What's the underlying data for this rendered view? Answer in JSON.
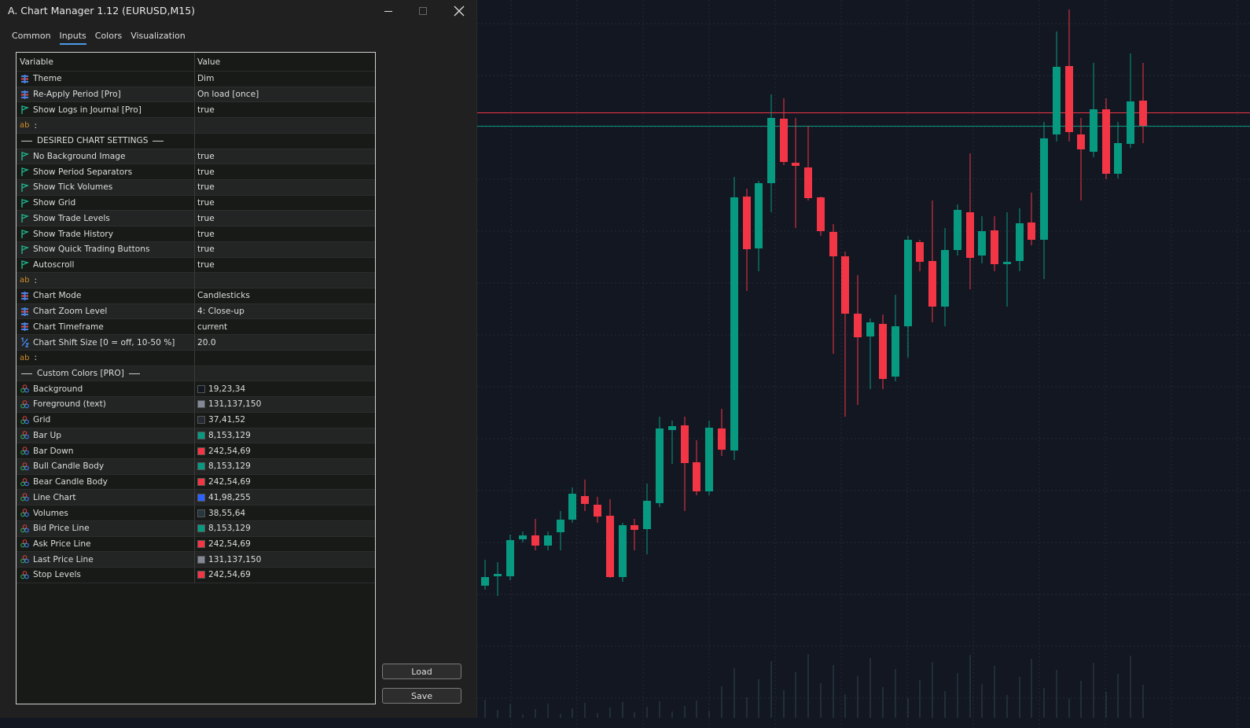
{
  "window": {
    "title": "A. Chart Manager 1.12 (EURUSD,M15)"
  },
  "tabs": [
    "Common",
    "Inputs",
    "Colors",
    "Visualization"
  ],
  "active_tab": 1,
  "table": {
    "header": [
      "Variable",
      "Value"
    ],
    "rows": [
      {
        "variable": "Theme",
        "value": "Dim"
      },
      {
        "variable": "Re-Apply Period [Pro]",
        "value": "On load [once]"
      },
      {
        "variable": "Show Logs in Journal [Pro]",
        "value": "true"
      },
      {
        "icon": "ab",
        "variable": ":"
      },
      {
        "section": "DESIRED CHART SETTINGS"
      },
      {
        "variable": "No Background Image",
        "value": "true"
      },
      {
        "variable": "Show Period Separators",
        "value": "true"
      },
      {
        "variable": "Show Tick Volumes",
        "value": "true"
      },
      {
        "variable": "Show Grid",
        "value": "true"
      },
      {
        "variable": "Show Trade Levels",
        "value": "true"
      },
      {
        "variable": "Show Trade History",
        "value": "true"
      },
      {
        "variable": "Show Quick Trading Buttons",
        "value": "true"
      },
      {
        "variable": "Autoscroll",
        "value": "true"
      },
      {
        "icon": "ab",
        "variable": ":"
      },
      {
        "variable": "Chart Mode",
        "value": "Candlesticks"
      },
      {
        "variable": "Chart Zoom Level",
        "value": "4: Close-up"
      },
      {
        "variable": "Chart Timeframe",
        "value": "current"
      },
      {
        "variable": "Chart Shift Size [0 = off, 10-50 %]",
        "value": "20.0"
      },
      {
        "icon": "ab",
        "variable": ":"
      },
      {
        "section": "Custom Colors [PRO]"
      },
      {
        "variable": "Background",
        "value": "19,23,34"
      },
      {
        "variable": "Foreground (text)",
        "value": "131,137,150"
      },
      {
        "variable": "Grid",
        "value": "37,41,52"
      },
      {
        "variable": "Bar Up",
        "value": "8,153,129"
      },
      {
        "variable": "Bar Down",
        "value": "242,54,69"
      },
      {
        "variable": "Bull Candle Body",
        "value": "8,153,129"
      },
      {
        "variable": "Bear Candle Body",
        "value": "242,54,69"
      },
      {
        "variable": "Line Chart",
        "value": "41,98,255"
      },
      {
        "variable": "Volumes",
        "value": "38,55,64"
      },
      {
        "variable": "Bid Price Line",
        "value": "8,153,129"
      },
      {
        "variable": "Ask Price Line",
        "value": "242,54,69"
      },
      {
        "variable": "Last Price Line",
        "value": "131,137,150"
      },
      {
        "variable": "Stop Levels",
        "value": "242,54,69"
      }
    ]
  },
  "buttons": [
    "Load",
    "Save"
  ]
}
